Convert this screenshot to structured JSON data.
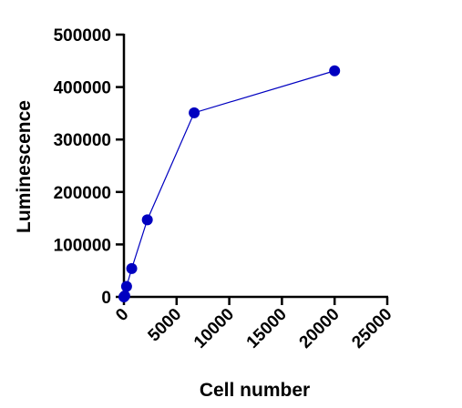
{
  "chart_data": {
    "type": "line",
    "xlabel": "Cell number",
    "ylabel": "Luminescence",
    "xlim": [
      0,
      25000
    ],
    "ylim": [
      0,
      500000
    ],
    "x_ticks": [
      0,
      5000,
      10000,
      15000,
      20000,
      25000
    ],
    "y_ticks": [
      0,
      100000,
      200000,
      300000,
      400000,
      500000
    ],
    "x_tick_labels": [
      "0",
      "5000",
      "10000",
      "15000",
      "20000",
      "25000"
    ],
    "y_tick_labels": [
      "0",
      "100000",
      "200000",
      "300000",
      "400000",
      "500000"
    ],
    "grid": false,
    "legend": "none",
    "series": [
      {
        "x": [
          0,
          80,
          250,
          740,
          2220,
          6670,
          20000
        ],
        "y": [
          0,
          2000,
          20000,
          54000,
          147000,
          351000,
          431000
        ],
        "color": "#0000c0"
      }
    ]
  }
}
